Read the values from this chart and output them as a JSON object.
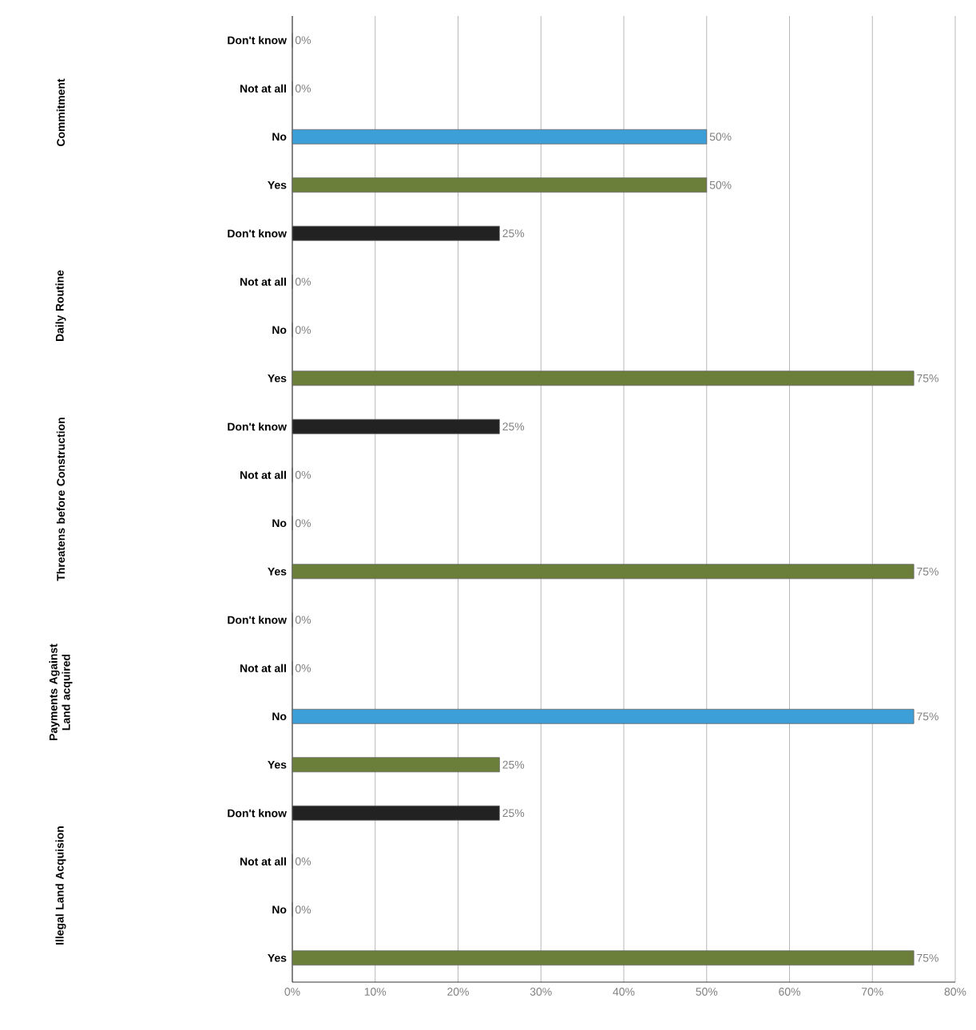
{
  "chart_data": {
    "type": "bar",
    "orientation": "horizontal",
    "categories": [
      "Don't know",
      "Not at all",
      "No",
      "Yes",
      "Don't know",
      "Not at all",
      "No",
      "Yes",
      "Don't know",
      "Not at all",
      "No",
      "Yes",
      "Don't know",
      "Not at all",
      "No",
      "Yes",
      "Don't know",
      "Not at all",
      "No",
      "Yes"
    ],
    "values": [
      0,
      0,
      50,
      50,
      25,
      0,
      0,
      75,
      25,
      0,
      0,
      75,
      0,
      0,
      75,
      25,
      25,
      0,
      0,
      75
    ],
    "value_labels": [
      "0%",
      "0%",
      "50%",
      "50%",
      "25%",
      "0%",
      "0%",
      "75%",
      "25%",
      "0%",
      "0%",
      "75%",
      "0%",
      "0%",
      "75%",
      "25%",
      "25%",
      "0%",
      "0%",
      "75%"
    ],
    "colors": [
      "#222222",
      "#c0504d",
      "#3d9fd8",
      "#6b7f3a",
      "#222222",
      "#c0504d",
      "#3d9fd8",
      "#6b7f3a",
      "#222222",
      "#c0504d",
      "#3d9fd8",
      "#6b7f3a",
      "#222222",
      "#c0504d",
      "#3d9fd8",
      "#6b7f3a",
      "#222222",
      "#c0504d",
      "#3d9fd8",
      "#6b7f3a"
    ],
    "annotations": [
      "Commitment",
      "Daily Routine",
      "Threatens before Construction",
      "Payments Against Land acquired",
      "Illegal Land Acquision"
    ],
    "xlim": [
      0,
      80
    ],
    "xticks": [
      {
        "value": 0,
        "label": "0%"
      },
      {
        "value": 10,
        "label": "10%"
      },
      {
        "value": 20,
        "label": "20%"
      },
      {
        "value": 30,
        "label": "30%"
      },
      {
        "value": 40,
        "label": "40%"
      },
      {
        "value": 50,
        "label": "50%"
      },
      {
        "value": 60,
        "label": "60%"
      },
      {
        "value": 70,
        "label": "70%"
      },
      {
        "value": 80,
        "label": "80%"
      }
    ],
    "grid": "x"
  }
}
